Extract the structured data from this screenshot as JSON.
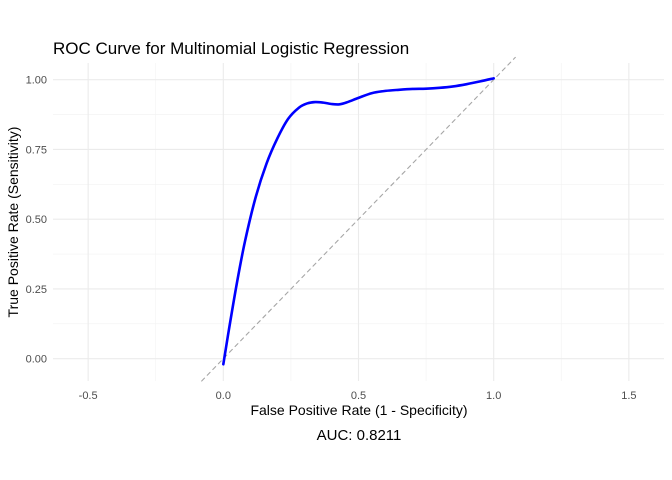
{
  "chart_data": {
    "type": "line",
    "title": "ROC Curve for Multinomial Logistic Regression",
    "xlabel": "False Positive Rate (1 - Specificity)",
    "ylabel": "True Positive Rate (Sensitivity)",
    "caption": "AUC: 0.8211",
    "xlim": [
      -0.63,
      1.63
    ],
    "ylim": [
      -0.08,
      1.06
    ],
    "x_ticks": [
      -0.5,
      0.0,
      0.5,
      1.0,
      1.5
    ],
    "x_tick_labels": [
      "-0.5",
      "0.0",
      "0.5",
      "1.0",
      "1.5"
    ],
    "y_ticks": [
      0.0,
      0.25,
      0.5,
      0.75,
      1.0
    ],
    "y_tick_labels": [
      "0.00",
      "0.25",
      "0.50",
      "0.75",
      "1.00"
    ],
    "grid": true,
    "series": [
      {
        "color": "#0000ff",
        "style": "solid",
        "x": [
          0.0,
          0.02,
          0.05,
          0.08,
          0.12,
          0.16,
          0.2,
          0.24,
          0.28,
          0.31,
          0.34,
          0.37,
          0.4,
          0.43,
          0.46,
          0.5,
          0.55,
          0.6,
          0.65,
          0.7,
          0.75,
          0.8,
          0.85,
          0.9,
          0.95,
          1.0
        ],
        "y": [
          -0.02,
          0.1,
          0.27,
          0.42,
          0.58,
          0.7,
          0.79,
          0.86,
          0.9,
          0.915,
          0.92,
          0.918,
          0.913,
          0.912,
          0.92,
          0.935,
          0.952,
          0.96,
          0.964,
          0.967,
          0.968,
          0.971,
          0.976,
          0.984,
          0.994,
          1.005
        ]
      },
      {
        "color": "#a6a6a6",
        "style": "dashed",
        "x": [
          -0.08,
          1.08
        ],
        "y": [
          -0.08,
          1.08
        ]
      }
    ]
  }
}
